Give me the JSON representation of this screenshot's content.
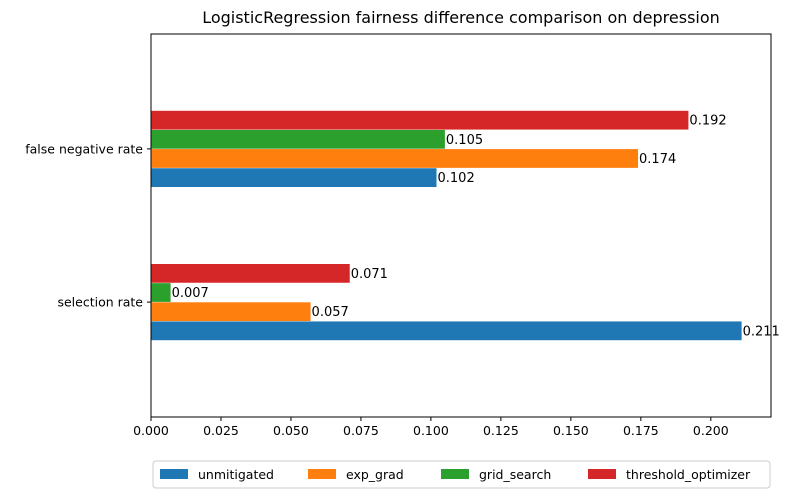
{
  "chart_data": {
    "type": "bar",
    "orientation": "horizontal",
    "title": "LogisticRegression fairness difference comparison on depression",
    "xlabel": "",
    "ylabel": "",
    "categories": [
      "selection rate",
      "false negative rate"
    ],
    "series": [
      {
        "name": "unmitigated",
        "color": "#1f77b4",
        "values": [
          0.211,
          0.102
        ],
        "labels": [
          "0.211",
          "0.102"
        ]
      },
      {
        "name": "exp_grad",
        "color": "#ff7f0e",
        "values": [
          0.057,
          0.174
        ],
        "labels": [
          "0.057",
          "0.174"
        ]
      },
      {
        "name": "grid_search",
        "color": "#2ca02c",
        "values": [
          0.007,
          0.105
        ],
        "labels": [
          "0.007",
          "0.105"
        ]
      },
      {
        "name": "threshold_optimizer",
        "color": "#d62728",
        "values": [
          0.071,
          0.192
        ],
        "labels": [
          "0.071",
          "0.192"
        ]
      }
    ],
    "xlim": [
      0,
      0.2215
    ],
    "xticks": [
      0.0,
      0.025,
      0.05,
      0.075,
      0.1,
      0.125,
      0.15,
      0.175,
      0.2
    ],
    "xtick_labels": [
      "0.000",
      "0.025",
      "0.050",
      "0.075",
      "0.100",
      "0.125",
      "0.150",
      "0.175",
      "0.200"
    ],
    "grid": false,
    "legend_position": "bottom-center"
  }
}
